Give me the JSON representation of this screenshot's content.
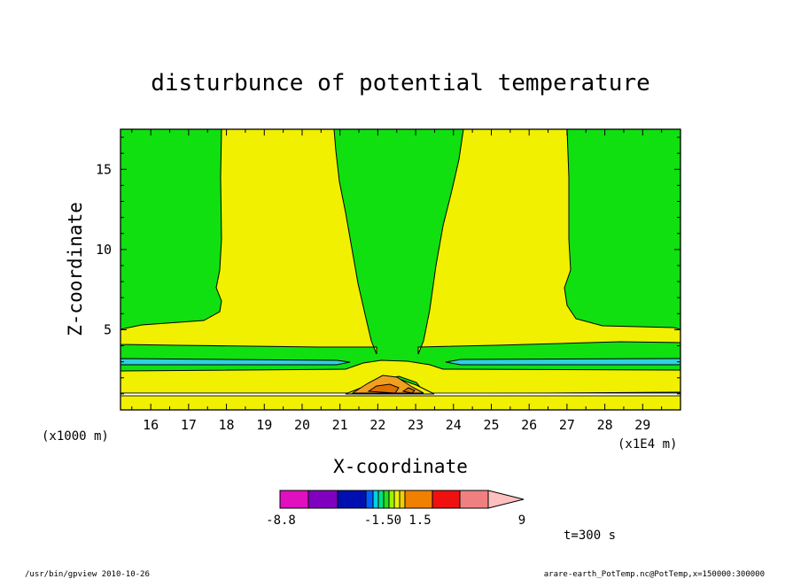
{
  "chart_data": {
    "type": "contour",
    "title": "disturbunce of potential temperature",
    "xlabel": "X-coordinate",
    "ylabel": "Z-coordinate",
    "x_unit_note": "(x1E4 m)",
    "y_unit_note": "(x1000 m)",
    "xlim": [
      15.2,
      30
    ],
    "ylim": [
      0,
      17.5
    ],
    "x_ticks": [
      "16",
      "17",
      "18",
      "19",
      "20",
      "21",
      "22",
      "23",
      "24",
      "25",
      "26",
      "27",
      "28",
      "29"
    ],
    "y_ticks": [
      "5",
      "10",
      "15"
    ],
    "colorbar": {
      "labels": [
        "-8.8",
        "-1.50",
        "1.5",
        "9"
      ],
      "colors": [
        "#e010c0",
        "#8000c0",
        "#0010b0",
        "#0060ff",
        "#00d0e0",
        "#00e080",
        "#20e020",
        "#a0f000",
        "#f0f000",
        "#f0d000",
        "#f08000",
        "#f01010",
        "#f08080",
        "#ffc0c0"
      ]
    },
    "regions": [
      {
        "level": "band",
        "color": "#10e010"
      },
      {
        "level": "band",
        "color": "#f0f000"
      },
      {
        "level": "band",
        "color": "#30d0e0"
      },
      {
        "level": "band",
        "color": "#f0a020"
      }
    ],
    "time_note": "t=300 s"
  },
  "footer": {
    "left": "/usr/bin/gpview   2010-10-26",
    "right": "arare-earth_PotTemp.nc@PotTemp,x=150000:300000"
  }
}
